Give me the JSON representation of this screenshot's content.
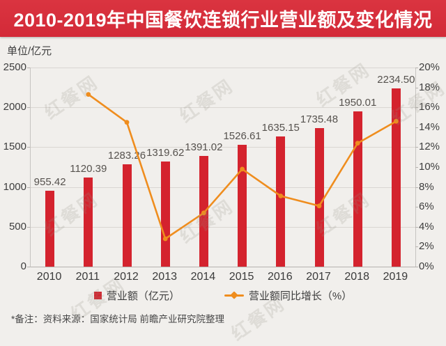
{
  "title": "2010-2019年中国餐饮连锁行业营业额及变化情况",
  "unit_label": "单位/亿元",
  "footnote": "*备注：资料来源：国家统计局 前瞻产业研究院整理",
  "watermark_text": "红餐网",
  "colors": {
    "banner": "#d5303c",
    "bar": "#d4232e",
    "line": "#ef8d1e",
    "grid": "#d9d6d2",
    "axis_text": "#3d3d3d",
    "bar_label_text": "#56524e",
    "background": "#f1efec",
    "title_text": "#ffffff"
  },
  "legend": {
    "revenue_label": "营业额（亿元）",
    "growth_label": "营业额同比增长（%）"
  },
  "chart_data": {
    "type": "bar+line",
    "title": "2010-2019年中国餐饮连锁行业营业额及变化情况",
    "categories": [
      "2010",
      "2011",
      "2012",
      "2013",
      "2014",
      "2015",
      "2016",
      "2017",
      "2018",
      "2019"
    ],
    "series": [
      {
        "name": "营业额（亿元）",
        "type": "bar",
        "axis": "left",
        "values": [
          955.42,
          1120.39,
          1283.26,
          1319.62,
          1391.02,
          1526.61,
          1635.15,
          1735.48,
          1950.01,
          2234.5
        ]
      },
      {
        "name": "营业额同比增长（%）",
        "type": "line",
        "axis": "right",
        "values": [
          null,
          17.3,
          14.5,
          2.8,
          5.4,
          9.8,
          7.1,
          6.1,
          12.4,
          14.6
        ]
      }
    ],
    "left_axis": {
      "label": "单位/亿元",
      "ticks": [
        "0",
        "500",
        "1000",
        "1500",
        "2000",
        "2500"
      ],
      "min": 0,
      "max": 2500
    },
    "right_axis": {
      "ticks": [
        "0%",
        "2%",
        "4%",
        "6%",
        "8%",
        "10%",
        "12%",
        "14%",
        "16%",
        "18%",
        "20%"
      ],
      "min": 0,
      "max": 20
    },
    "grid": true,
    "legend_position": "bottom"
  }
}
